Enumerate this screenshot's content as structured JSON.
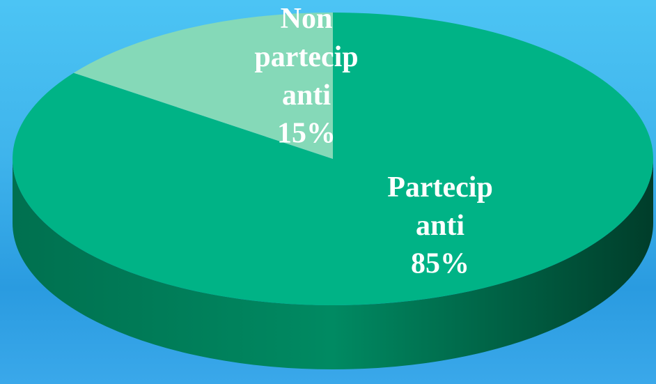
{
  "chart_data": {
    "type": "pie",
    "categories": [
      "Partecipanti",
      "Non partecipanti"
    ],
    "values": [
      85,
      15
    ],
    "value_labels": [
      "85%",
      "15%"
    ],
    "colors": [
      "#00b386",
      "#85d9b8"
    ]
  }
}
